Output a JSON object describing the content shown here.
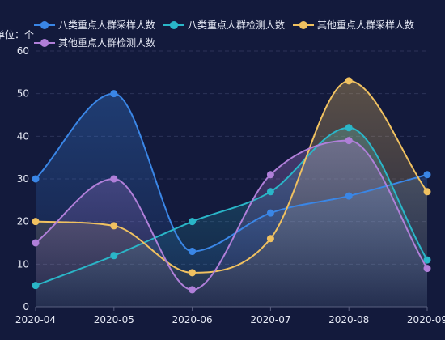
{
  "chart_data": {
    "type": "line",
    "smooth": true,
    "area_fill": true,
    "unit_label": "单位：个",
    "x": [
      "2020-04",
      "2020-05",
      "2020-06",
      "2020-07",
      "2020-08",
      "2020-09"
    ],
    "ylim": [
      0,
      60
    ],
    "yticks": [
      0,
      10,
      20,
      30,
      40,
      50,
      60
    ],
    "grid": "horizontal dashed",
    "legend_position": "top",
    "series": [
      {
        "name": "八类重点人群采样人数",
        "color": "#3a86e6",
        "values": [
          30,
          50,
          13,
          22,
          26,
          31
        ]
      },
      {
        "name": "八类重点人群检测人数",
        "color": "#2ab6c8",
        "values": [
          5,
          12,
          20,
          27,
          42,
          11
        ]
      },
      {
        "name": "其他重点人群采样人数",
        "color": "#f0c160",
        "values": [
          20,
          19,
          8,
          16,
          53,
          27
        ]
      },
      {
        "name": "其他重点人群检测人数",
        "color": "#b07fd9",
        "values": [
          15,
          30,
          4,
          31,
          39,
          9
        ]
      }
    ]
  },
  "colors": {
    "background": "#131a3c",
    "text": "#e6e9f5",
    "axis": "#5a6080",
    "grid": "#2c3358"
  }
}
